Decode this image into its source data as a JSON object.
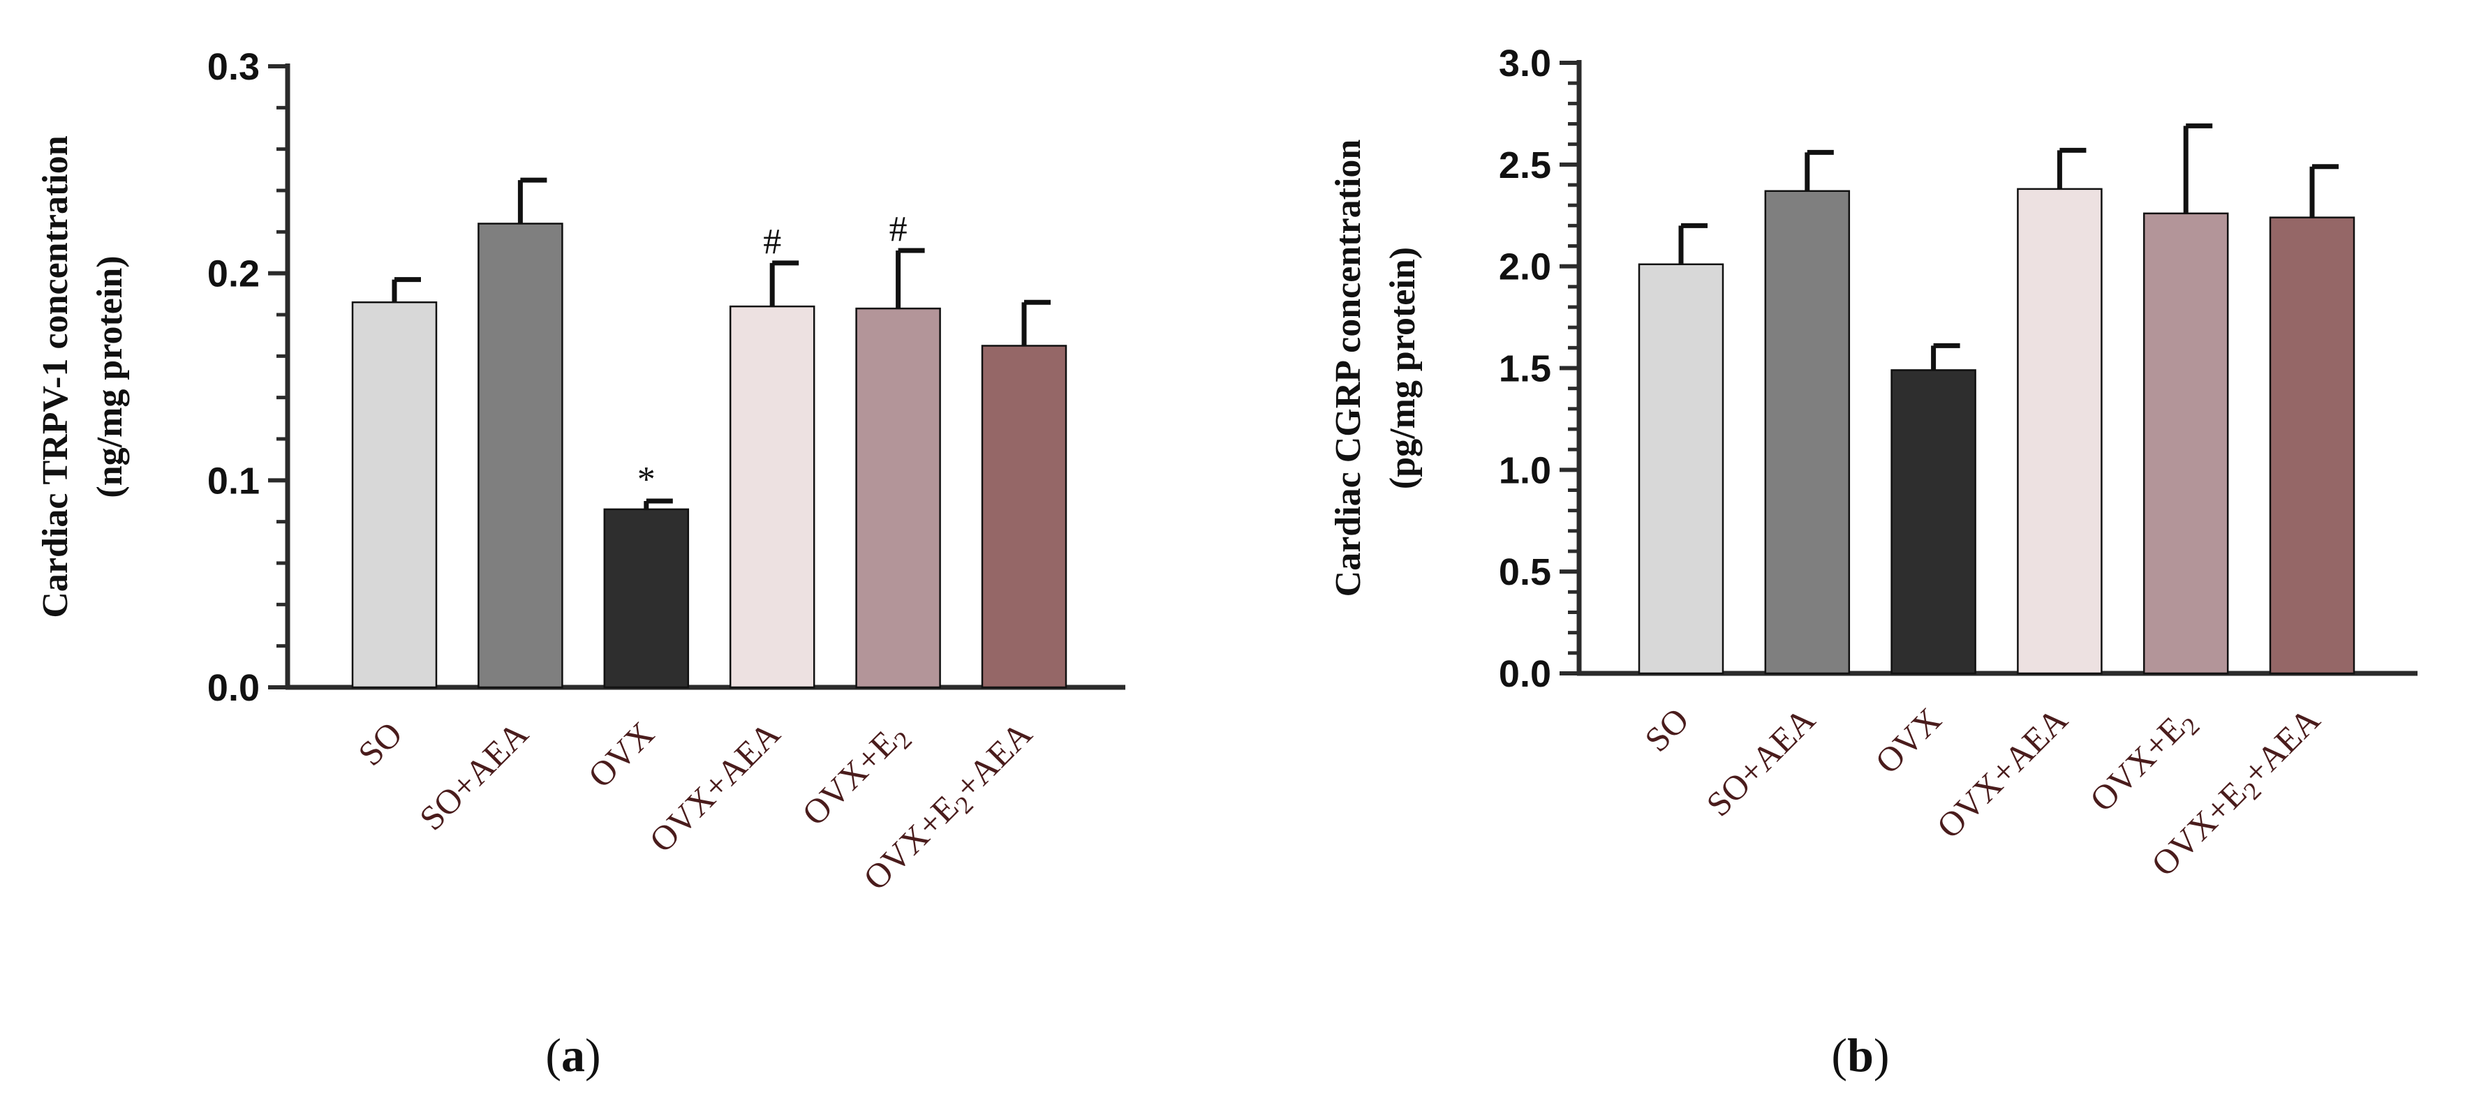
{
  "figure": {
    "panel_a_label": {
      "open": "(",
      "letter": "a",
      "close": ")"
    },
    "panel_b_label": {
      "open": "(",
      "letter": "b",
      "close": ")"
    }
  },
  "chart_data": [
    {
      "type": "bar",
      "title": "",
      "ylabel_line1": "Cardiac TRPV-1 concentration",
      "ylabel_line2": "(ng/mg protein)",
      "xlabel": "",
      "ylim": [
        0,
        0.3
      ],
      "yticks": [
        {
          "value": 0.0,
          "label": "0.0"
        },
        {
          "value": 0.1,
          "label": "0.1"
        },
        {
          "value": 0.2,
          "label": "0.2"
        },
        {
          "value": 0.3,
          "label": "0.3"
        }
      ],
      "minor_step": 0.02,
      "categories": [
        {
          "parts": [
            {
              "t": "SO"
            }
          ]
        },
        {
          "parts": [
            {
              "t": "SO+AEA"
            }
          ]
        },
        {
          "parts": [
            {
              "t": "OVX"
            }
          ]
        },
        {
          "parts": [
            {
              "t": "OVX+AEA"
            }
          ]
        },
        {
          "parts": [
            {
              "t": "OVX+E"
            },
            {
              "t": "2",
              "sub": true
            }
          ]
        },
        {
          "parts": [
            {
              "t": "OVX+E"
            },
            {
              "t": "2",
              "sub": true
            },
            {
              "t": "+AEA"
            }
          ]
        }
      ],
      "values": [
        0.186,
        0.224,
        0.086,
        0.184,
        0.183,
        0.165
      ],
      "errors": [
        0.011,
        0.021,
        0.004,
        0.021,
        0.028,
        0.021
      ],
      "annotations": [
        "",
        "",
        "*",
        "#",
        "#",
        ""
      ],
      "colors": [
        "#d8d8d8",
        "#7f7f7f",
        "#2e2e2e",
        "#ede1e1",
        "#b39599",
        "#956767"
      ]
    },
    {
      "type": "bar",
      "title": "",
      "ylabel_line1": "Cardiac CGRP concentration",
      "ylabel_line2": "(pg/mg protein)",
      "xlabel": "",
      "ylim": [
        0,
        3.0
      ],
      "yticks": [
        {
          "value": 0.0,
          "label": "0.0"
        },
        {
          "value": 0.5,
          "label": "0.5"
        },
        {
          "value": 1.0,
          "label": "1.0"
        },
        {
          "value": 1.5,
          "label": "1.5"
        },
        {
          "value": 2.0,
          "label": "2.0"
        },
        {
          "value": 2.5,
          "label": "2.5"
        },
        {
          "value": 3.0,
          "label": "3.0"
        }
      ],
      "minor_step": 0.1,
      "categories": [
        {
          "parts": [
            {
              "t": "SO"
            }
          ]
        },
        {
          "parts": [
            {
              "t": "SO+AEA"
            }
          ]
        },
        {
          "parts": [
            {
              "t": "OVX"
            }
          ]
        },
        {
          "parts": [
            {
              "t": "OVX+AEA"
            }
          ]
        },
        {
          "parts": [
            {
              "t": "OVX+E"
            },
            {
              "t": "2",
              "sub": true
            }
          ]
        },
        {
          "parts": [
            {
              "t": "OVX+E"
            },
            {
              "t": "2",
              "sub": true
            },
            {
              "t": "+AEA"
            }
          ]
        }
      ],
      "values": [
        2.01,
        2.37,
        1.49,
        2.38,
        2.26,
        2.24
      ],
      "errors": [
        0.19,
        0.19,
        0.12,
        0.19,
        0.43,
        0.25
      ],
      "annotations": [
        "",
        "",
        "",
        "",
        "",
        ""
      ],
      "colors": [
        "#d8d8d8",
        "#7f7f7f",
        "#2e2e2e",
        "#ede1e1",
        "#b39599",
        "#956767"
      ]
    }
  ]
}
